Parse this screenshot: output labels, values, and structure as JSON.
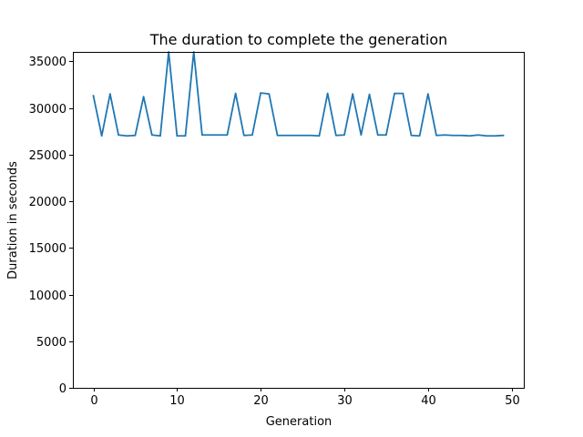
{
  "chart_data": {
    "type": "line",
    "title": "The duration to complete the generation",
    "xlabel": "Generation",
    "ylabel": "Duration in seconds",
    "xlim": [
      -2.45,
      51.45
    ],
    "ylim": [
      0,
      36000
    ],
    "xticks": [
      0,
      10,
      20,
      30,
      40,
      50
    ],
    "yticks": [
      0,
      5000,
      10000,
      15000,
      20000,
      25000,
      30000,
      35000
    ],
    "grid": false,
    "legend": "none",
    "series": [
      {
        "color": "#1f77b4",
        "x": [
          0,
          1,
          2,
          3,
          4,
          5,
          6,
          7,
          8,
          9,
          10,
          11,
          12,
          13,
          14,
          15,
          16,
          17,
          18,
          19,
          20,
          21,
          22,
          23,
          24,
          25,
          26,
          27,
          28,
          29,
          30,
          31,
          32,
          33,
          34,
          35,
          36,
          37,
          38,
          39,
          40,
          41,
          42,
          43,
          44,
          45,
          46,
          47,
          48,
          49
        ],
        "y": [
          31300,
          27000,
          31500,
          27100,
          27000,
          27050,
          31200,
          27100,
          27000,
          36000,
          27000,
          27000,
          36000,
          27100,
          27100,
          27100,
          27100,
          31550,
          27050,
          27100,
          31600,
          31500,
          27050,
          27050,
          27050,
          27050,
          27050,
          27000,
          31550,
          27050,
          27100,
          31500,
          27100,
          31450,
          27100,
          27100,
          31550,
          31550,
          27050,
          27000,
          31500,
          27050,
          27100,
          27050,
          27050,
          27000,
          27100,
          27000,
          27000,
          27050
        ]
      }
    ]
  }
}
